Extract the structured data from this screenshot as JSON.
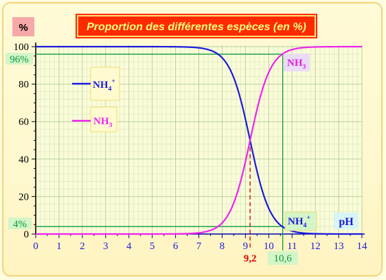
{
  "chart_data": {
    "type": "line",
    "title": "Proportion des différentes espèces (en %)",
    "ylabel": "%",
    "xlabel": "pH",
    "xlim": [
      0,
      14
    ],
    "ylim": [
      0,
      100
    ],
    "x_ticks": [
      "0",
      "1",
      "2",
      "3",
      "4",
      "5",
      "6",
      "7",
      "8",
      "9",
      "10",
      "11",
      "12",
      "13",
      "14"
    ],
    "y_ticks": [
      "0",
      "20",
      "40",
      "60",
      "80",
      "100"
    ],
    "grid": true,
    "pKa": 9.2,
    "series": [
      {
        "name": "NH4+",
        "color": "#1a1adc",
        "x": [
          0,
          1,
          2,
          3,
          4,
          5,
          6,
          6.5,
          7,
          7.5,
          8,
          8.4,
          8.8,
          9.2,
          9.6,
          10,
          10.3,
          10.6,
          11,
          11.5,
          12,
          13,
          14
        ],
        "y": [
          100,
          100,
          100,
          100,
          100,
          100,
          99.8,
          99.5,
          98.4,
          95.2,
          94.1,
          86.3,
          71.5,
          50,
          28.5,
          13.7,
          7.3,
          3.8,
          1.6,
          0.5,
          0.2,
          0,
          0
        ]
      },
      {
        "name": "NH3",
        "color": "#ee22ee",
        "x": [
          0,
          1,
          2,
          3,
          4,
          5,
          6,
          6.5,
          7,
          7.5,
          8,
          8.4,
          8.8,
          9.2,
          9.6,
          10,
          10.3,
          10.6,
          11,
          11.5,
          12,
          13,
          14
        ],
        "y": [
          0,
          0,
          0,
          0,
          0,
          0,
          0.2,
          0.5,
          1.6,
          4.8,
          5.9,
          13.7,
          28.5,
          50,
          71.5,
          86.3,
          92.7,
          96.2,
          98.4,
          99.5,
          99.8,
          100,
          100
        ]
      }
    ],
    "annotations": {
      "pct_high": "96%",
      "pct_low": "4%",
      "ph_mid": "9,2",
      "ph_high": "10,6"
    },
    "legend": [
      {
        "base": "NH",
        "sub": "4",
        "sup": "+",
        "color": "#1a1adc"
      },
      {
        "base": "NH",
        "sub": "3",
        "sup": "",
        "color": "#ee22ee"
      }
    ],
    "curve_labels": {
      "nh3": {
        "base": "NH",
        "sub": "3",
        "sup": ""
      },
      "nh4": {
        "base": "NH",
        "sub": "4",
        "sup": "+"
      }
    }
  }
}
